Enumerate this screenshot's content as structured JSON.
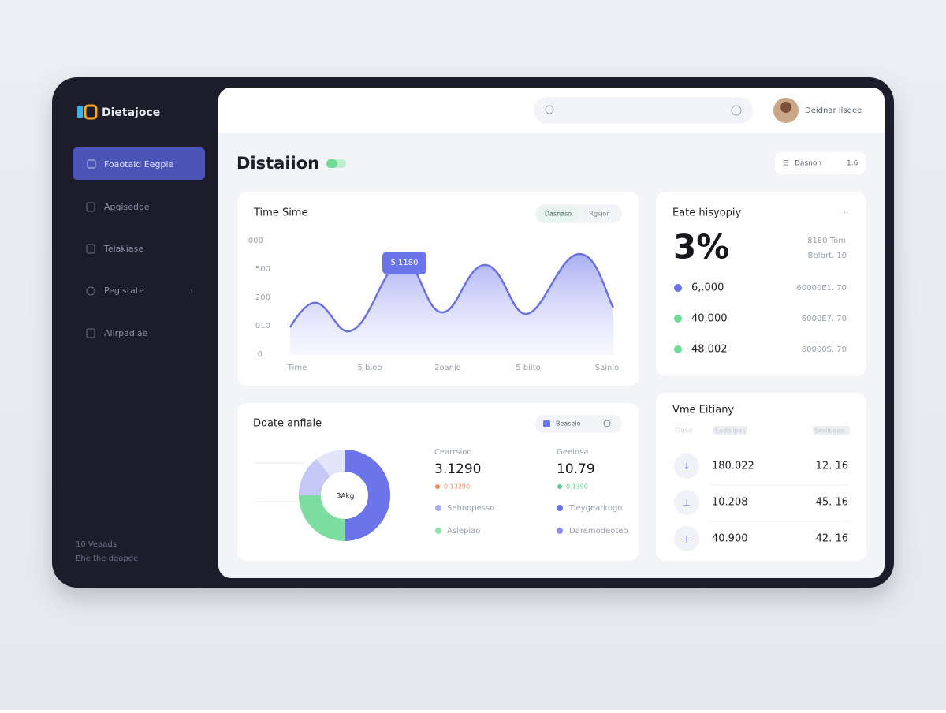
{
  "brand": "Dietajoce",
  "nav": [
    "Foaotald Eegpie",
    "Apgisedoe",
    "Telakiase",
    "Pegistate",
    "Allrpadiae"
  ],
  "sidebar_footer": [
    "10 Veaads",
    "Ehe the dgapde"
  ],
  "user": "Deidnar Ilsgee",
  "page_title": "Distaiion",
  "toolbar": {
    "button": "Dasnon",
    "count": "1.6"
  },
  "time_card": {
    "title": "Time Sime",
    "tabs": [
      "Dasnaso",
      "Rgsjor"
    ],
    "y_labels": [
      "000",
      "500",
      "200",
      "010",
      "0"
    ],
    "tooltip": "5,1180",
    "x_labels": [
      "Time",
      "5 bioo",
      "2oanjo",
      "5 biito",
      "Sainio"
    ]
  },
  "rate_card": {
    "title": "Eate hisyopiy",
    "big": "3%",
    "side": [
      "8180 Tom",
      "Bblbrt. 10"
    ],
    "rows": [
      [
        "6,.000",
        "60000E1. 70"
      ],
      [
        "40,000",
        "6000E7. 70"
      ],
      [
        "48.002",
        "60000S. 70"
      ]
    ]
  },
  "donut_card": {
    "title": "Doate anfiaie",
    "chip": "Beaseio",
    "center": "3Akg",
    "stats": [
      {
        "label": "Cearrsioo",
        "value": "3.1290",
        "sub": "0.13290"
      },
      {
        "label": "Geeinsa",
        "value": "10.79",
        "sub": "0.1390"
      }
    ],
    "legend": [
      "Sehnopesso",
      "Aslepiao",
      "Tieygearkogo",
      "Daremodeoteo"
    ]
  },
  "list_card": {
    "title": "Vme Eitiany",
    "header": [
      "Ouse",
      "Eadbilpes",
      "Saslibees"
    ],
    "rows": [
      [
        "180.022",
        "12. 16"
      ],
      [
        "10.208",
        "45. 16"
      ],
      [
        "40.900",
        "42. 16"
      ]
    ]
  }
}
